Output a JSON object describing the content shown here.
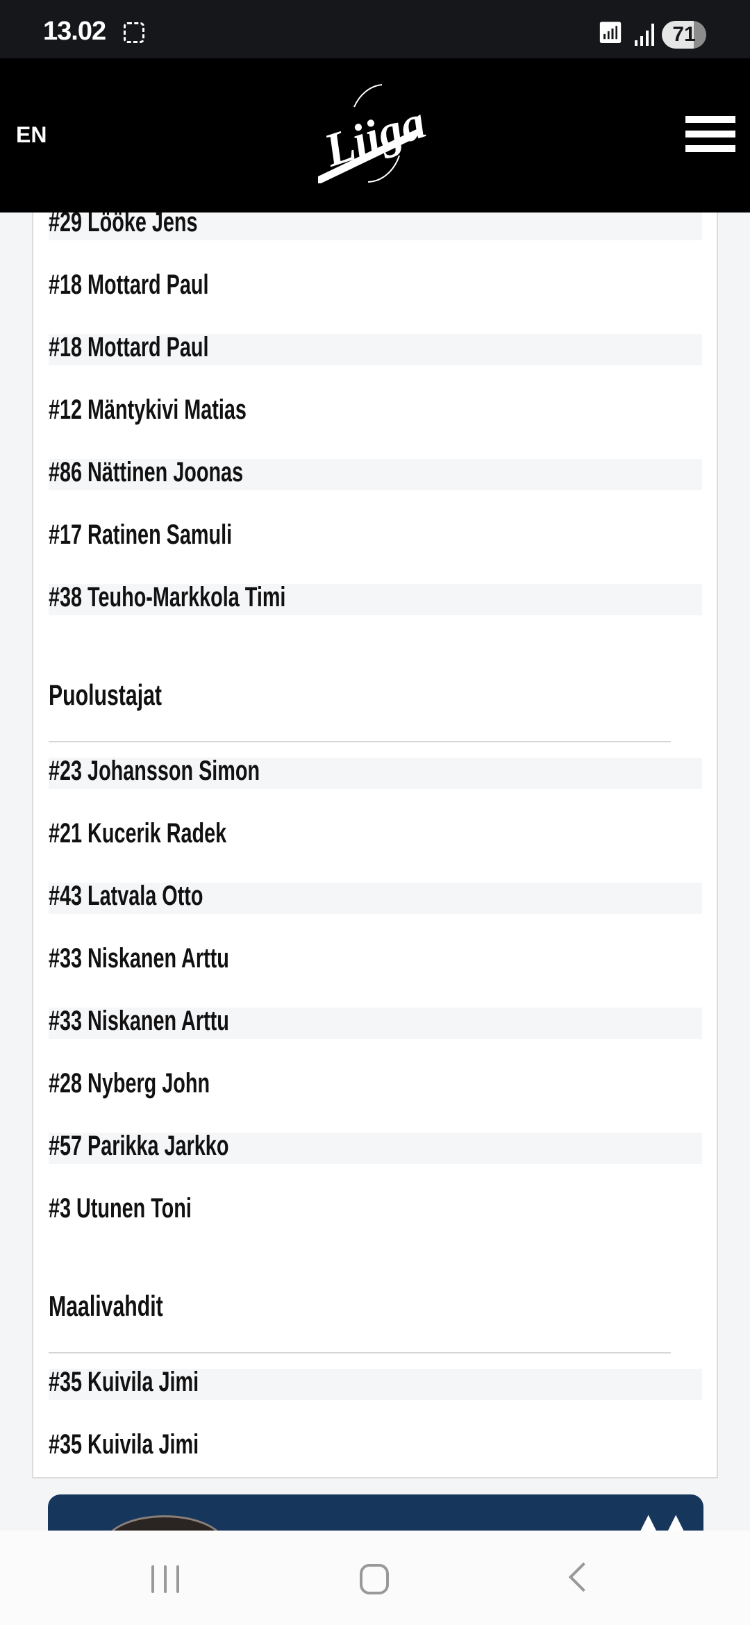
{
  "status_bar": {
    "time": "13.02",
    "battery": "71",
    "wifi_icon": "wifi-icon",
    "signal_icon": "signal-icon"
  },
  "header": {
    "language": "EN",
    "logo_text": "Liiga",
    "menu_icon": "hamburger-menu-icon"
  },
  "groups": [
    {
      "title": "",
      "players": [
        "#29 Lööke Jens",
        "#18 Mottard Paul",
        "#18 Mottard Paul",
        "#12 Mäntykivi Matias",
        "#86 Nättinen Joonas",
        "#17 Ratinen Samuli",
        "#38 Teuho-Markkola Timi"
      ]
    },
    {
      "title": "Puolustajat",
      "players": [
        "#23 Johansson Simon",
        "#21 Kucerik Radek",
        "#43 Latvala Otto",
        "#33 Niskanen Arttu",
        "#33 Niskanen Arttu",
        "#28 Nyberg John",
        "#57 Parikka Jarkko",
        "#3 Utunen Toni"
      ]
    },
    {
      "title": "Maalivahdit",
      "players": [
        "#35 Kuivila Jimi",
        "#35 Kuivila Jimi"
      ]
    }
  ],
  "colors": {
    "ad_background": "#17365c",
    "row_shade": "#f5f6f8",
    "header_bg": "#000000"
  }
}
